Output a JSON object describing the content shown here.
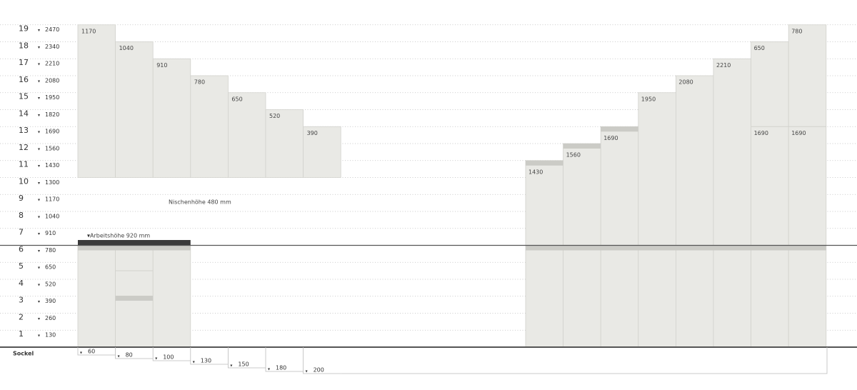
{
  "rows": [
    {
      "number": "1",
      "height": "130"
    },
    {
      "number": "2",
      "height": "260"
    },
    {
      "number": "3",
      "height": "390"
    },
    {
      "number": "4",
      "height": "520"
    },
    {
      "number": "5",
      "height": "650"
    },
    {
      "number": "6",
      "height": "780"
    },
    {
      "number": "7",
      "height": "910"
    },
    {
      "number": "8",
      "height": "1040"
    },
    {
      "number": "9",
      "height": "1170"
    },
    {
      "number": "10",
      "height": "1300"
    },
    {
      "number": "11",
      "height": "1430"
    },
    {
      "number": "12",
      "height": "1560"
    },
    {
      "number": "13",
      "height": "1690"
    },
    {
      "number": "14",
      "height": "1820"
    },
    {
      "number": "15",
      "height": "1950"
    },
    {
      "number": "16",
      "height": "2080"
    },
    {
      "number": "17",
      "height": "2210"
    },
    {
      "number": "18",
      "height": "2340"
    },
    {
      "number": "19",
      "height": "2470"
    }
  ],
  "upper_cabinets": {
    "labels": [
      "1170",
      "1040",
      "910",
      "780",
      "650",
      "520",
      "390"
    ]
  },
  "tall_cabinets": {
    "top_labels": [
      "1430",
      "1560",
      "1690",
      "1950",
      "2080",
      "2210",
      "650",
      "780"
    ],
    "inner_labels": [
      "1690",
      "1690"
    ]
  },
  "annotations": {
    "niche": "Nischenhöhe 480 mm",
    "worktop": "Arbeitshöhe 920 mm"
  },
  "sockel": {
    "title": "Sockel",
    "labels": [
      "60",
      "80",
      "100",
      "130",
      "150",
      "180",
      "200"
    ]
  }
}
